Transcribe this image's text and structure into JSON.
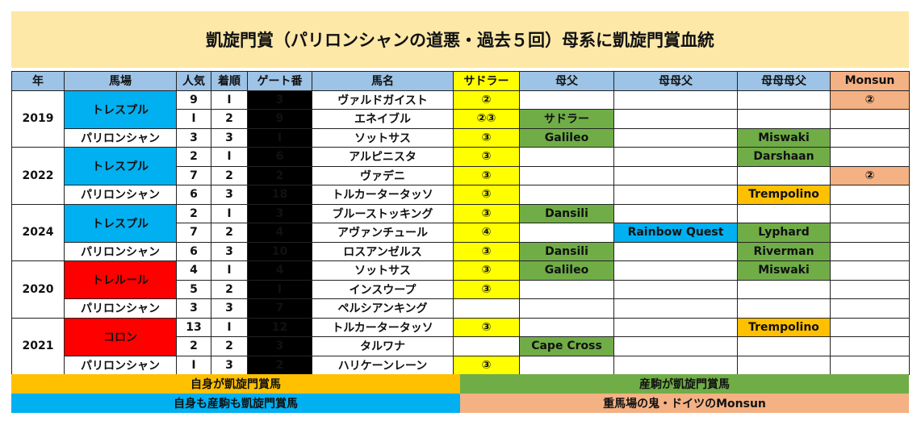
{
  "title": "凱旋門賞（パリロンシャンの道悪・過去５回）母系に凱旋門賞血統",
  "headers": [
    "年",
    "馬場",
    "人気",
    "着順",
    "ゲート番",
    "馬名",
    "サドラー",
    "母父",
    "母母父",
    "母母母父",
    "Monsun"
  ],
  "groups": [
    {
      "year": "2019",
      "track": "トレスプル",
      "track_color": "blue",
      "rows": [
        {
          "pop": "9",
          "place": "Ⅰ",
          "gate": "3",
          "name": "ヴァルドガイスト",
          "sadler": "②",
          "f1": "",
          "f2": "",
          "f3": "",
          "monsun": "②",
          "f1c": "",
          "f2c": "",
          "f3c": ""
        },
        {
          "pop": "Ⅰ",
          "place": "2",
          "gate": "9",
          "name": "エネイブル",
          "sadler": "②③",
          "f1": "サドラー",
          "f2": "",
          "f3": "",
          "monsun": "",
          "f1c": "grn",
          "f2c": "",
          "f3c": ""
        }
      ],
      "paris": {
        "pop": "3",
        "place": "3",
        "gate": "Ⅰ",
        "name": "ソットサス",
        "sadler": "③",
        "f1": "Galileo",
        "f2": "",
        "f3": "Miswaki",
        "monsun": "",
        "f1c": "grn",
        "f2c": "",
        "f3c": "grn"
      }
    },
    {
      "year": "2022",
      "track": "トレスプル",
      "track_color": "blue",
      "rows": [
        {
          "pop": "2",
          "place": "Ⅰ",
          "gate": "6",
          "name": "アルピニスタ",
          "sadler": "③",
          "f1": "",
          "f2": "",
          "f3": "Darshaan",
          "monsun": "",
          "f1c": "",
          "f2c": "",
          "f3c": "grn"
        },
        {
          "pop": "7",
          "place": "2",
          "gate": "2",
          "name": "ヴァデニ",
          "sadler": "③",
          "f1": "",
          "f2": "",
          "f3": "",
          "monsun": "②",
          "f1c": "",
          "f2c": "",
          "f3c": ""
        }
      ],
      "paris": {
        "pop": "6",
        "place": "3",
        "gate": "18",
        "name": "トルカータータッソ",
        "sadler": "③",
        "f1": "",
        "f2": "",
        "f3": "Trempolino",
        "monsun": "",
        "f1c": "",
        "f2c": "",
        "f3c": "org"
      }
    },
    {
      "year": "2024",
      "track": "トレスプル",
      "track_color": "blue",
      "rows": [
        {
          "pop": "2",
          "place": "Ⅰ",
          "gate": "3",
          "name": "ブルーストッキング",
          "sadler": "③",
          "f1": "Dansili",
          "f2": "",
          "f3": "",
          "monsun": "",
          "f1c": "grn",
          "f2c": "",
          "f3c": ""
        },
        {
          "pop": "7",
          "place": "2",
          "gate": "4",
          "name": "アヴァンチュール",
          "sadler": "④",
          "f1": "",
          "f2": "Rainbow Quest",
          "f3": "Lyphard",
          "monsun": "",
          "f1c": "",
          "f2c": "sky",
          "f3c": "grn"
        }
      ],
      "paris": {
        "pop": "6",
        "place": "3",
        "gate": "10",
        "name": "ロスアンゼルス",
        "sadler": "③",
        "f1": "Dansili",
        "f2": "",
        "f3": "Riverman",
        "monsun": "",
        "f1c": "grn",
        "f2c": "",
        "f3c": "grn"
      }
    },
    {
      "year": "2020",
      "track": "トレルール",
      "track_color": "red",
      "rows": [
        {
          "pop": "4",
          "place": "Ⅰ",
          "gate": "4",
          "name": "ソットサス",
          "sadler": "③",
          "f1": "Galileo",
          "f2": "",
          "f3": "Miswaki",
          "monsun": "",
          "f1c": "grn",
          "f2c": "",
          "f3c": "grn"
        },
        {
          "pop": "5",
          "place": "2",
          "gate": "Ⅰ",
          "name": "インスウープ",
          "sadler": "③",
          "f1": "",
          "f2": "",
          "f3": "",
          "monsun": "",
          "f1c": "",
          "f2c": "",
          "f3c": ""
        }
      ],
      "paris": {
        "pop": "3",
        "place": "3",
        "gate": "7",
        "name": "ペルシアンキング",
        "sadler": "",
        "f1": "",
        "f2": "",
        "f3": "",
        "monsun": "",
        "f1c": "",
        "f2c": "",
        "f3c": ""
      }
    },
    {
      "year": "2021",
      "track": "コロン",
      "track_color": "red",
      "rows": [
        {
          "pop": "13",
          "place": "Ⅰ",
          "gate": "12",
          "name": "トルカータータッソ",
          "sadler": "③",
          "f1": "",
          "f2": "",
          "f3": "Trempolino",
          "monsun": "",
          "f1c": "",
          "f2c": "",
          "f3c": "org"
        },
        {
          "pop": "2",
          "place": "2",
          "gate": "3",
          "name": "タルワナ",
          "sadler": "",
          "f1": "Cape Cross",
          "f2": "",
          "f3": "",
          "monsun": "",
          "f1c": "grn",
          "f2c": "",
          "f3c": ""
        }
      ],
      "paris": {
        "pop": "Ⅰ",
        "place": "3",
        "gate": "2",
        "name": "ハリケーンレーン",
        "sadler": "③",
        "f1": "",
        "f2": "",
        "f3": "",
        "monsun": "",
        "f1c": "",
        "f2c": "",
        "f3c": ""
      }
    }
  ],
  "paris_label": "パリロンシャン",
  "legend": {
    "own": "自身が凱旋門賞馬",
    "progeny": "産駒が凱旋門賞馬",
    "both": "自身も産駒も凱旋門賞馬",
    "monsun": "重馬場の鬼・ドイツのMonsun",
    "colors": {
      "own": "#ffc000",
      "progeny": "#70ad47",
      "both": "#00b0f0",
      "monsun": "#f4b183"
    }
  }
}
